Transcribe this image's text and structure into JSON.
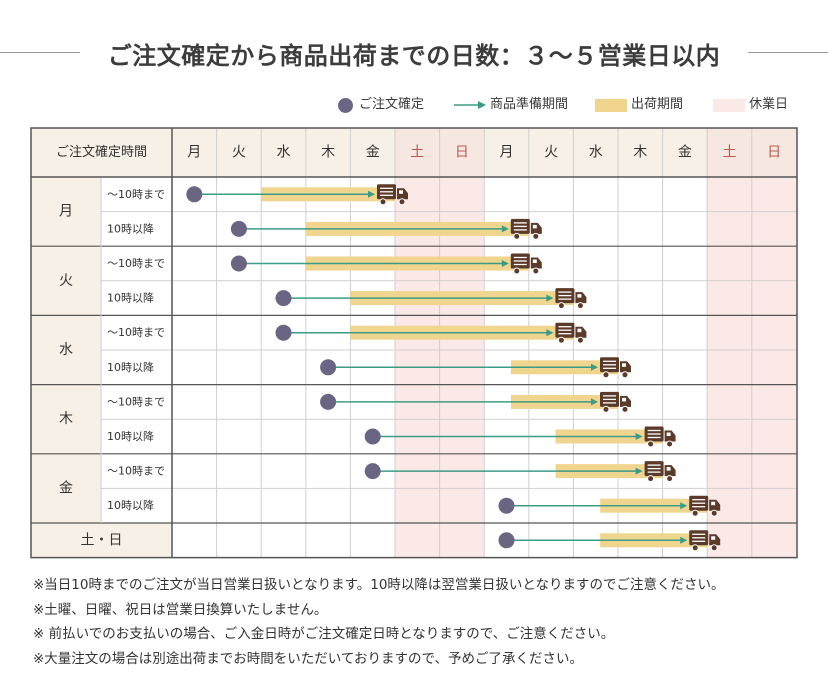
{
  "title": "ご注文確定から商品出荷までの日数：３～５営業日以内",
  "legend": [
    {
      "kind": "dot",
      "label": "ご注文確定",
      "icon": "order-dot-icon"
    },
    {
      "kind": "arrow",
      "label": "商品準備期間",
      "icon": "arrow-right-icon"
    },
    {
      "kind": "ship",
      "label": "出荷期間",
      "icon": "shipping-bar-swatch"
    },
    {
      "kind": "holiday",
      "label": "休業日",
      "icon": "holiday-swatch"
    }
  ],
  "colors": {
    "dot": "#6b6584",
    "arrow": "#3c9b85",
    "ship": "#f0d58e",
    "holiday": "#fbe9e7",
    "header_bg": "#f6f0e6",
    "border": "#555555",
    "grid": "#cfcfcf",
    "weekend_text": "#b85a4c",
    "truck": "#5c3a2a"
  },
  "table": {
    "header_label": "ご注文確定時間",
    "days": [
      "月",
      "火",
      "水",
      "木",
      "金",
      "土",
      "日",
      "月",
      "火",
      "水",
      "木",
      "金",
      "土",
      "日"
    ],
    "holiday_columns": [
      5,
      6,
      12,
      13
    ],
    "groups": [
      {
        "day": "月",
        "rows": [
          {
            "time": "～10時まで",
            "order": 0,
            "ship_start": 2,
            "ship_end": 5
          },
          {
            "time": "10時以降",
            "order": 1,
            "ship_start": 3,
            "ship_end": 8
          }
        ]
      },
      {
        "day": "火",
        "rows": [
          {
            "time": "～10時まで",
            "order": 1,
            "ship_start": 3,
            "ship_end": 8
          },
          {
            "time": "10時以降",
            "order": 2,
            "ship_start": 4,
            "ship_end": 9
          }
        ]
      },
      {
        "day": "水",
        "rows": [
          {
            "time": "～10時まで",
            "order": 2,
            "ship_start": 4,
            "ship_end": 9
          },
          {
            "time": "10時以降",
            "order": 3,
            "ship_start": 7.6,
            "ship_end": 10
          }
        ]
      },
      {
        "day": "木",
        "rows": [
          {
            "time": "～10時まで",
            "order": 3,
            "ship_start": 7.6,
            "ship_end": 10
          },
          {
            "time": "10時以降",
            "order": 4,
            "ship_start": 8.6,
            "ship_end": 11
          }
        ]
      },
      {
        "day": "金",
        "rows": [
          {
            "time": "～10時まで",
            "order": 4,
            "ship_start": 8.6,
            "ship_end": 11
          },
          {
            "time": "10時以降",
            "order": 7,
            "ship_start": 9.6,
            "ship_end": 12
          }
        ]
      }
    ],
    "weekend_row": {
      "label": "土・日",
      "order": 7,
      "ship_start": 9.6,
      "ship_end": 12
    }
  },
  "notes": [
    "※当日10時までのご注文が当日営業日扱いとなります。10時以降は翌営業日扱いとなりますのでご注意ください。",
    "※土曜、日曜、祝日は営業日換算いたしません。",
    "※ 前払いでのお支払いの場合、ご入金日時がご注文確定日時となりますので、ご注意ください。",
    "※大量注文の場合は別途出荷までお時間をいただいておりますので、予めご了承ください。"
  ]
}
